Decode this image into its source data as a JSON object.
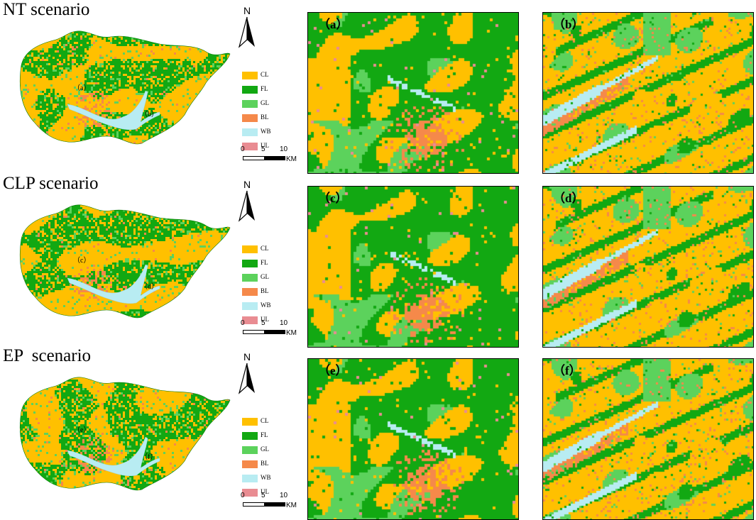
{
  "colors": {
    "CL": "#ffc000",
    "FL": "#12a812",
    "GL": "#5cd25c",
    "BL": "#f5894a",
    "WB": "#b8ecf2",
    "UL": "#e98c92"
  },
  "legend": [
    {
      "code": "CL",
      "label": "CL"
    },
    {
      "code": "FL",
      "label": "FL"
    },
    {
      "code": "GL",
      "label": "GL"
    },
    {
      "code": "BL",
      "label": "BL"
    },
    {
      "code": "WB",
      "label": "WB"
    },
    {
      "code": "UL",
      "label": "UL"
    }
  ],
  "north_label": "N",
  "scale": {
    "ticks": [
      "0",
      "5",
      "10"
    ],
    "unit": "KM"
  },
  "scenarios": [
    {
      "title": "NT scenario",
      "map_labels": [
        "（a）",
        "（b）"
      ],
      "panels": [
        {
          "label": "（a）"
        },
        {
          "label": "（b）"
        }
      ]
    },
    {
      "title": "CLP scenario",
      "map_labels": [
        "（c）",
        "（d）"
      ],
      "panels": [
        {
          "label": "（c）"
        },
        {
          "label": "（d）"
        }
      ]
    },
    {
      "title": "EP  scenario",
      "map_labels": [
        "（e）",
        "（f）"
      ],
      "panels": [
        {
          "label": "（e）"
        },
        {
          "label": "（f）"
        }
      ]
    }
  ]
}
